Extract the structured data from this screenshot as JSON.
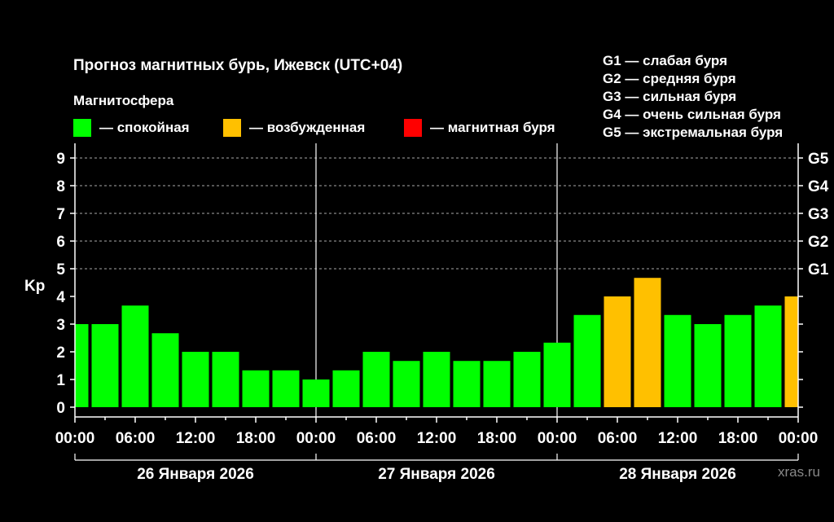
{
  "header": {
    "title": "Прогноз магнитных бурь, Ижевск (UTC+04)",
    "legend_title": "Магнитосфера",
    "legend": [
      {
        "label": "— спокойная",
        "color": "#00ff00"
      },
      {
        "label": "— возбужденная",
        "color": "#ffc000"
      },
      {
        "label": "— магнитная буря",
        "color": "#ff0000"
      }
    ],
    "g_legend": [
      "G1 — слабая буря",
      "G2 — средняя буря",
      "G3 — сильная буря",
      "G4 — очень сильная буря",
      "G5 — экстремальная буря"
    ]
  },
  "watermark": "xras.ru",
  "chart_data": {
    "type": "bar",
    "ylabel": "Kp",
    "ylim": [
      0,
      9
    ],
    "y_ticks": [
      "0",
      "1",
      "2",
      "3",
      "4",
      "5",
      "6",
      "7",
      "8",
      "9"
    ],
    "right_ticks": [
      "G1",
      "G2",
      "G3",
      "G4",
      "G5"
    ],
    "right_tick_values": [
      5,
      6,
      7,
      8,
      9
    ],
    "grid": "dashed horizontal at 5–9",
    "x_ticks": [
      "00:00",
      "06:00",
      "12:00",
      "18:00",
      "00:00",
      "06:00",
      "12:00",
      "18:00",
      "00:00",
      "06:00",
      "12:00",
      "18:00",
      "00:00"
    ],
    "days": [
      "26 Января 2026",
      "27 Января 2026",
      "28 Января 2026"
    ],
    "interval_hours": 3,
    "values": [
      3.0,
      3.0,
      3.67,
      2.67,
      2.0,
      2.0,
      1.33,
      1.33,
      1.0,
      1.33,
      2.0,
      1.67,
      2.0,
      1.67,
      1.67,
      2.0,
      2.33,
      3.33,
      4.0,
      4.67,
      3.33,
      3.0,
      3.33,
      3.67,
      4.0
    ],
    "colors": {
      "quiet": "#00ff00",
      "unsettled": "#ffc000",
      "storm": "#ff0000"
    }
  }
}
